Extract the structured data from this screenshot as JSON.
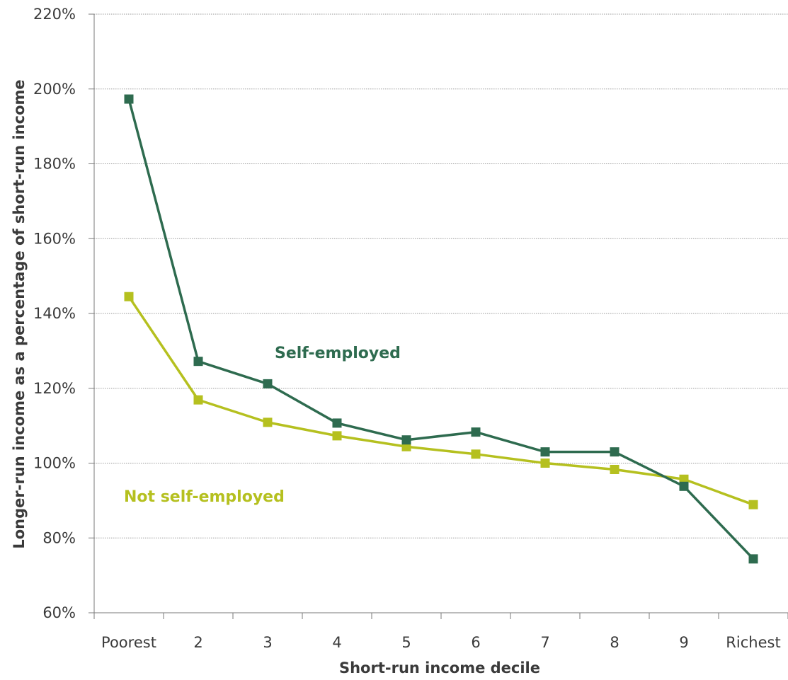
{
  "chart_data": {
    "type": "line",
    "xlabel": "Short-run income decile",
    "ylabel": "Longer-run income as a percentage of short-run income",
    "categories": [
      "Poorest",
      "2",
      "3",
      "4",
      "5",
      "6",
      "7",
      "8",
      "9",
      "Richest"
    ],
    "ylim": [
      60,
      220
    ],
    "yticks": [
      60,
      80,
      100,
      120,
      140,
      160,
      180,
      200,
      220
    ],
    "ytick_labels": [
      "60%",
      "80%",
      "100%",
      "120%",
      "140%",
      "160%",
      "180%",
      "200%",
      "220%"
    ],
    "grid": "horizontal",
    "legend": "inline",
    "series": [
      {
        "name": "Self-employed",
        "color": "#2e6b4f",
        "marker": "square",
        "values": [
          197.3,
          127.2,
          121.2,
          110.7,
          106.2,
          108.3,
          103.0,
          103.0,
          93.8,
          74.4
        ]
      },
      {
        "name": "Not self-employed",
        "color": "#b5c01f",
        "marker": "square",
        "values": [
          144.5,
          116.9,
          110.9,
          107.3,
          104.4,
          102.4,
          100.0,
          98.3,
          95.7,
          88.9
        ]
      }
    ]
  }
}
